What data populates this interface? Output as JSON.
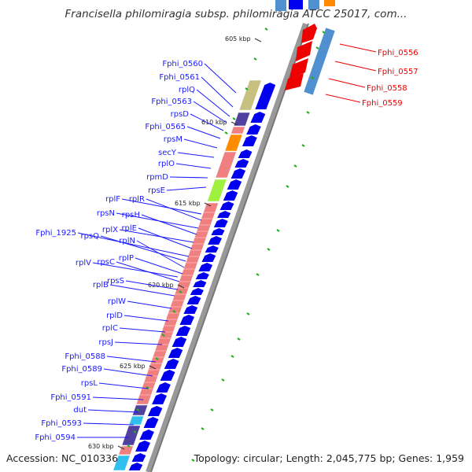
{
  "title": "Francisella philomiragia subsp. philomiragia ATCC 25017, com...",
  "footer": {
    "accession": "Accession: NC_010336",
    "topology": "Topology: circular; Length: 2,045,775 bp; Genes: 1,959"
  },
  "scale_ticks": [
    "605 kbp",
    "610 kbp",
    "615 kbp",
    "620 kbp",
    "625 kbp",
    "630 kbp"
  ],
  "left_labels": [
    "Fphi_0560",
    "Fphi_0561",
    "rplQ",
    "Fphi_0563",
    "rpsD",
    "Fphi_0565",
    "rpsM",
    "secY",
    "rplO",
    "rpmD",
    "rpsE",
    "rplF",
    "rplR",
    "rpsN",
    "rpsH",
    "rplX",
    "rplE",
    "Fphi_1925",
    "rpsQ",
    "rplN",
    "rplP",
    "rplV",
    "rpsC",
    "rpsS",
    "rplB",
    "rplW",
    "rplD",
    "rplC",
    "rpsJ",
    "Fphi_0588",
    "Fphi_0589",
    "rpsL",
    "Fphi_0591",
    "dut",
    "Fphi_0593",
    "Fphi_0594"
  ],
  "right_labels": [
    "Fphi_0556",
    "Fphi_0557",
    "Fphi_0558",
    "Fphi_0559"
  ],
  "colors": {
    "ring": "#888888",
    "forward_gene": "#0000ee",
    "reverse_gene": "#ee0000",
    "cog_pink": "#f08080",
    "cog_olive": "#c8c080",
    "cog_purple": "#5040a0",
    "cog_orange": "#ff8c00",
    "cog_lime": "#a0f040",
    "cog_lightblue": "#5090d0",
    "cog_cyan": "#30c0f0",
    "gc_tick": "#22aa22"
  }
}
